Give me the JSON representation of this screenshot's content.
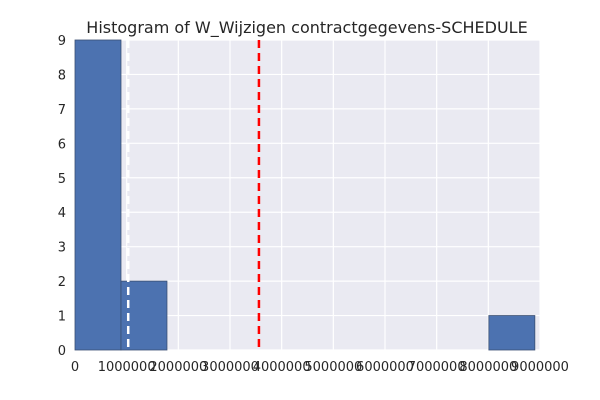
{
  "chart_data": {
    "type": "bar",
    "title": "Histogram of W_Wijzigen contractgegevens-SCHEDULE",
    "xlabel": "",
    "ylabel": "",
    "xlim": [
      0,
      9000000
    ],
    "ylim": [
      0,
      9
    ],
    "grid": true,
    "x_ticks": [
      "0",
      "1000000",
      "2000000",
      "3000000",
      "4000000",
      "5000000",
      "6000000",
      "7000000",
      "8000000",
      "9000000"
    ],
    "x_tick_values": [
      0,
      1000000,
      2000000,
      3000000,
      4000000,
      5000000,
      6000000,
      7000000,
      8000000,
      9000000
    ],
    "y_ticks": [
      "0",
      "1",
      "2",
      "3",
      "4",
      "5",
      "6",
      "7",
      "8",
      "9"
    ],
    "y_tick_values": [
      0,
      1,
      2,
      3,
      4,
      5,
      6,
      7,
      8,
      9
    ],
    "bins": [
      {
        "x0": 0,
        "x1": 890000,
        "count": 9
      },
      {
        "x0": 890000,
        "x1": 1780000,
        "count": 2
      },
      {
        "x0": 8010000,
        "x1": 8900000,
        "count": 1
      }
    ],
    "reference_lines": [
      {
        "x": 1030000,
        "color": "#ffffff",
        "style": "dashed"
      },
      {
        "x": 3560000,
        "color": "#ff0000",
        "style": "dashed"
      }
    ],
    "bar_color": "#4c72b0",
    "background_color": "#eaeaf2"
  }
}
